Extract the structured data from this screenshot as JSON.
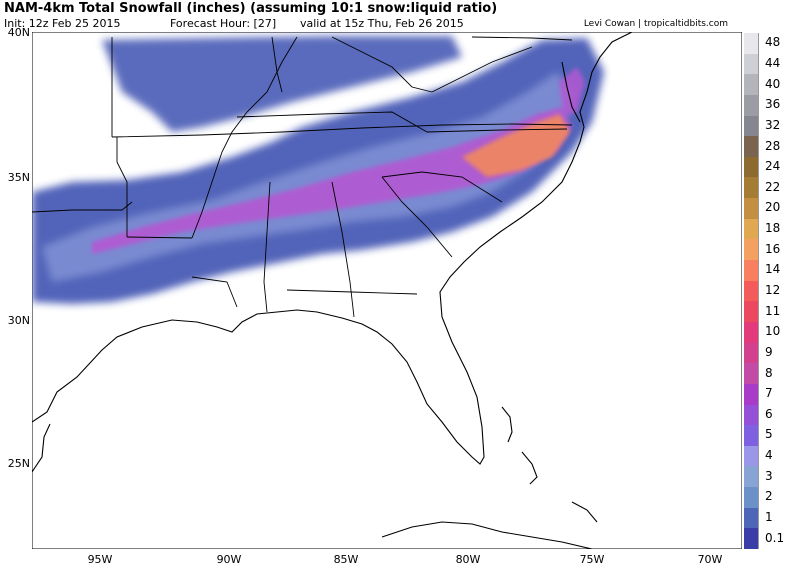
{
  "header": {
    "title": "NAM-4km Total Snowfall (inches) (assuming 10:1 snow:liquid ratio)",
    "init": "Init: 12z Feb 25 2015",
    "forecast_hour": "Forecast Hour: [27]",
    "valid": "valid at 15z Thu, Feb 26 2015",
    "credit": "Levi Cowan | tropicaltidbits.com"
  },
  "lat_labels": [
    "40N",
    "35N",
    "30N",
    "25N"
  ],
  "lon_labels": [
    "95W",
    "90W",
    "85W",
    "80W",
    "75W",
    "70W"
  ],
  "legend": {
    "levels": [
      "48",
      "44",
      "40",
      "36",
      "32",
      "28",
      "24",
      "22",
      "20",
      "18",
      "16",
      "14",
      "12",
      "11",
      "10",
      "9",
      "8",
      "7",
      "6",
      "5",
      "4",
      "3",
      "2",
      "1",
      "0.1"
    ],
    "colors": [
      "#e8e8ec",
      "#cfd0d6",
      "#b4b4bb",
      "#9c9ca4",
      "#868690",
      "#7a6450",
      "#8c6a30",
      "#a47c34",
      "#c29040",
      "#e0a850",
      "#f4a060",
      "#f88060",
      "#f45c5c",
      "#ec4860",
      "#e23a7a",
      "#d2408e",
      "#c44aa8",
      "#a83cc8",
      "#9650d8",
      "#7e60e0",
      "#9a96e8",
      "#88a4d4",
      "#6c90c8",
      "#4e66b8",
      "#3a3ca8"
    ]
  },
  "colors": {
    "land": "#ffffff",
    "coastline": "#000000",
    "band_outer": "#4a5cb6",
    "band_mid": "#7f8fd4",
    "band_core": "#b458d2",
    "band_peak": "#ef8664"
  }
}
